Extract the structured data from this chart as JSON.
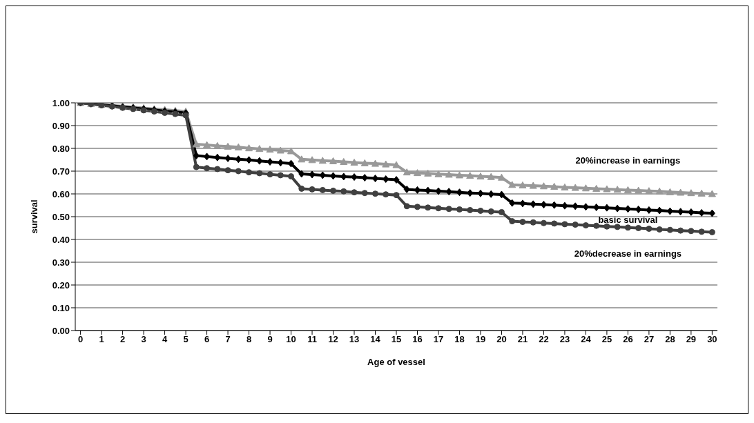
{
  "chart_data": {
    "type": "line",
    "xlabel": "Age of vessel",
    "ylabel": "survival",
    "x": [
      0,
      0.5,
      1,
      1.5,
      2,
      2.5,
      3,
      3.5,
      4,
      4.5,
      5,
      5.5,
      6,
      6.5,
      7,
      7.5,
      8,
      8.5,
      9,
      9.5,
      10,
      10.5,
      11,
      11.5,
      12,
      12.5,
      13,
      13.5,
      14,
      14.5,
      15,
      15.5,
      16,
      16.5,
      17,
      17.5,
      18,
      18.5,
      19,
      19.5,
      20,
      20.5,
      21,
      21.5,
      22,
      22.5,
      23,
      23.5,
      24,
      24.5,
      25,
      25.5,
      26,
      26.5,
      27,
      27.5,
      28,
      28.5,
      29,
      29.5,
      30
    ],
    "series": [
      {
        "name": "20%increase in earnings",
        "color": "#999999",
        "marker": "triangle",
        "values": [
          1.0,
          0.996,
          0.992,
          0.989,
          0.985,
          0.981,
          0.977,
          0.973,
          0.97,
          0.966,
          0.962,
          0.818,
          0.815,
          0.811,
          0.808,
          0.805,
          0.801,
          0.798,
          0.795,
          0.791,
          0.788,
          0.752,
          0.749,
          0.746,
          0.744,
          0.741,
          0.738,
          0.735,
          0.733,
          0.73,
          0.727,
          0.695,
          0.692,
          0.69,
          0.687,
          0.685,
          0.682,
          0.68,
          0.677,
          0.675,
          0.672,
          0.64,
          0.638,
          0.636,
          0.634,
          0.632,
          0.629,
          0.627,
          0.625,
          0.623,
          0.621,
          0.619,
          0.617,
          0.615,
          0.613,
          0.611,
          0.608,
          0.606,
          0.604,
          0.602,
          0.6
        ]
      },
      {
        "name": "basic survival",
        "color": "#000000",
        "marker": "diamond",
        "values": [
          1.0,
          0.996,
          0.991,
          0.987,
          0.982,
          0.978,
          0.973,
          0.969,
          0.964,
          0.96,
          0.955,
          0.768,
          0.764,
          0.76,
          0.756,
          0.752,
          0.749,
          0.745,
          0.741,
          0.737,
          0.733,
          0.688,
          0.685,
          0.682,
          0.679,
          0.676,
          0.674,
          0.671,
          0.668,
          0.665,
          0.662,
          0.62,
          0.617,
          0.615,
          0.612,
          0.61,
          0.607,
          0.604,
          0.602,
          0.599,
          0.597,
          0.56,
          0.558,
          0.555,
          0.553,
          0.551,
          0.548,
          0.546,
          0.543,
          0.541,
          0.539,
          0.536,
          0.534,
          0.532,
          0.529,
          0.527,
          0.524,
          0.522,
          0.52,
          0.517,
          0.515
        ]
      },
      {
        "name": "20%decrease in earnings",
        "color": "#404040",
        "marker": "circle",
        "values": [
          1.0,
          0.995,
          0.989,
          0.984,
          0.978,
          0.973,
          0.967,
          0.962,
          0.956,
          0.951,
          0.945,
          0.718,
          0.713,
          0.709,
          0.704,
          0.7,
          0.695,
          0.691,
          0.686,
          0.682,
          0.677,
          0.623,
          0.62,
          0.617,
          0.614,
          0.611,
          0.607,
          0.604,
          0.601,
          0.598,
          0.595,
          0.546,
          0.543,
          0.54,
          0.537,
          0.534,
          0.532,
          0.529,
          0.526,
          0.523,
          0.52,
          0.48,
          0.477,
          0.475,
          0.472,
          0.47,
          0.467,
          0.465,
          0.462,
          0.46,
          0.457,
          0.455,
          0.452,
          0.45,
          0.447,
          0.444,
          0.442,
          0.439,
          0.437,
          0.434,
          0.432
        ]
      }
    ],
    "xlim": [
      -0.25,
      30.25
    ],
    "xticks": [
      0,
      1,
      2,
      3,
      4,
      5,
      6,
      7,
      8,
      9,
      10,
      11,
      12,
      13,
      14,
      15,
      16,
      17,
      18,
      19,
      20,
      21,
      22,
      23,
      24,
      25,
      26,
      27,
      28,
      29,
      30
    ],
    "ylim": [
      0,
      1
    ],
    "yticks": [
      {
        "value": 0,
        "label": "0.00"
      },
      {
        "value": 0.1,
        "label": "0.10"
      },
      {
        "value": 0.2,
        "label": "0.20"
      },
      {
        "value": 0.3,
        "label": "0.30"
      },
      {
        "value": 0.4,
        "label": "0.40"
      },
      {
        "value": 0.5,
        "label": "0.50"
      },
      {
        "value": 0.6,
        "label": "0.60"
      },
      {
        "value": 0.7,
        "label": "0.70"
      },
      {
        "value": 0.8,
        "label": "0.80"
      },
      {
        "value": 0.9,
        "label": "0.90"
      },
      {
        "value": 1,
        "label": "1.00"
      }
    ],
    "grid": "y",
    "line_style": "solid"
  }
}
